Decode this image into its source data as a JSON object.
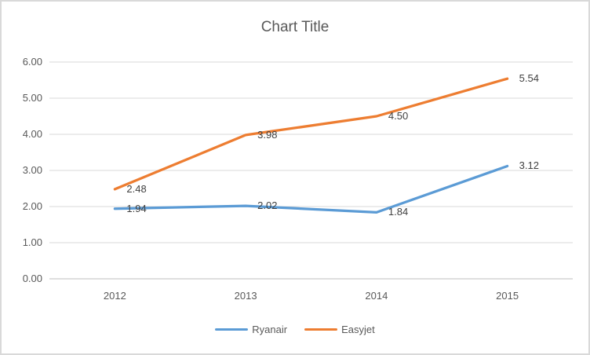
{
  "chart_data": {
    "type": "line",
    "title": "Chart Title",
    "categories": [
      "2012",
      "2013",
      "2014",
      "2015"
    ],
    "series": [
      {
        "name": "Ryanair",
        "color": "#5B9BD5",
        "values": [
          1.94,
          2.02,
          1.84,
          3.12
        ],
        "labels": [
          "1.94",
          "2.02",
          "1.84",
          "3.12"
        ]
      },
      {
        "name": "Easyjet",
        "color": "#ED7D31",
        "values": [
          2.48,
          3.98,
          4.5,
          5.54
        ],
        "labels": [
          "2.48",
          "3.98",
          "4.50",
          "5.54"
        ]
      }
    ],
    "y_axis": {
      "min": 0,
      "max": 6,
      "step": 1,
      "tick_labels": [
        "0.00",
        "1.00",
        "2.00",
        "3.00",
        "4.00",
        "5.00",
        "6.00"
      ]
    },
    "x_axis": {
      "tick_labels": [
        "2012",
        "2013",
        "2014",
        "2015"
      ]
    },
    "grid": true,
    "legend_position": "bottom",
    "data_labels_position": "right"
  },
  "colors": {
    "gridline": "#D9D9D9",
    "axis_line": "#BFBFBF",
    "title_text": "#595959",
    "tick_text": "#595959",
    "data_label_text": "#404040",
    "frame_border": "#D9D9D9",
    "background": "#FFFFFF"
  }
}
